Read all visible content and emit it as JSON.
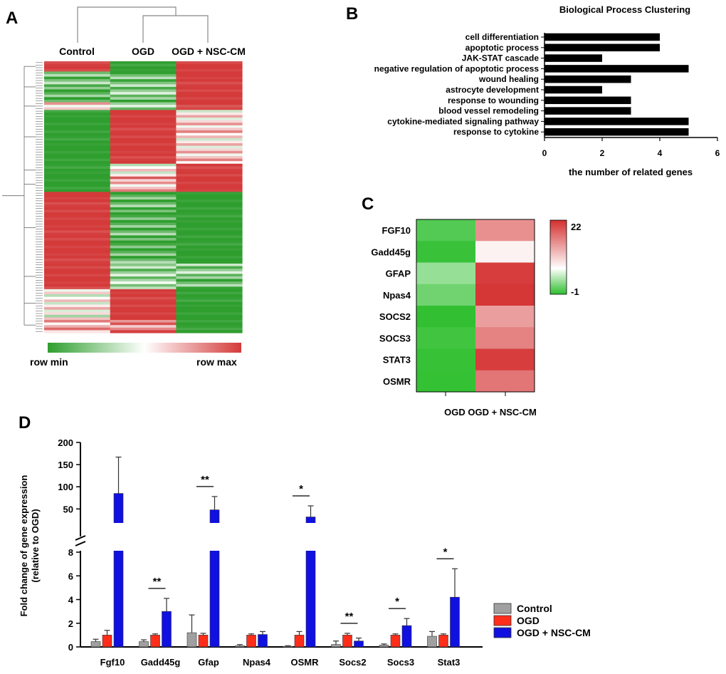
{
  "panel_labels": {
    "a": "A",
    "b": "B",
    "c": "C",
    "d": "D"
  },
  "chart_data": [
    {
      "type": "heatmap",
      "panel": "A",
      "columns": [
        "Control",
        "OGD",
        "OGD + NSC-CM"
      ],
      "scale_min_label": "row min",
      "scale_max_label": "row max",
      "colors": {
        "min": "#2e9e2e",
        "mid": "#ffffff",
        "max": "#d43a3a"
      },
      "clusters": [
        {
          "rows": 4,
          "levels": [
            1.0,
            0.0,
            1.0
          ]
        },
        {
          "rows": 12,
          "levels": [
            0.15,
            0.2,
            1.0
          ]
        },
        {
          "rows": 3,
          "levels": [
            0.6,
            0.3,
            0.95
          ]
        },
        {
          "rows": 21,
          "levels": [
            0.0,
            1.0,
            0.6
          ]
        },
        {
          "rows": 5,
          "levels": [
            0.0,
            0.5,
            1.0
          ]
        },
        {
          "rows": 6,
          "levels": [
            0.0,
            0.7,
            1.0
          ]
        },
        {
          "rows": 28,
          "levels": [
            1.0,
            0.1,
            0.0
          ]
        },
        {
          "rows": 10,
          "levels": [
            1.0,
            0.3,
            0.2
          ]
        },
        {
          "rows": 11,
          "levels": [
            0.5,
            1.0,
            0.0
          ]
        },
        {
          "rows": 6,
          "levels": [
            0.7,
            0.85,
            0.0
          ]
        }
      ]
    },
    {
      "type": "bar",
      "panel": "B",
      "orientation": "horizontal",
      "title": "Biological Process Clustering",
      "xlabel": "the number of related genes",
      "xlim": [
        0,
        6
      ],
      "xticks": [
        "0",
        "2",
        "4",
        "6"
      ],
      "categories": [
        "cell differentiation",
        "apoptotic process",
        "JAK-STAT cascade",
        "negative regulation of apoptotic process",
        "wound healing",
        "astrocyte development",
        "response to wounding",
        "blood vessel remodeling",
        "cytokine-mediated signaling pathway",
        "response to cytokine"
      ],
      "values": [
        4,
        4,
        2,
        5,
        3,
        2,
        3,
        3,
        5,
        5
      ],
      "bar_color": "#000000"
    },
    {
      "type": "heatmap",
      "panel": "C",
      "rows": [
        "FGF10",
        "Gadd45g",
        "GFAP",
        "Npas4",
        "SOCS2",
        "SOCS3",
        "STAT3",
        "OSMR"
      ],
      "columns_label": "OGD OGD + NSC-CM",
      "columns": [
        "OGD",
        "OGD + NSC-CM"
      ],
      "values": [
        [
          0.4,
          15.0
        ],
        [
          -0.6,
          8.0
        ],
        [
          3.0,
          21.0
        ],
        [
          1.5,
          21.5
        ],
        [
          -0.9,
          14.0
        ],
        [
          -0.3,
          16.0
        ],
        [
          -0.7,
          21.0
        ],
        [
          -0.8,
          17.0
        ]
      ],
      "scale": {
        "min": -1,
        "max": 22,
        "min_label": "-1",
        "max_label": "22"
      }
    },
    {
      "type": "bar",
      "panel": "D",
      "ylabel": "Fold change of gene expression",
      "ylabel2": "(relative to OGD)",
      "axis_break": {
        "lower": [
          0,
          8
        ],
        "upper": [
          20,
          200
        ]
      },
      "lower_ticks": [
        "0",
        "2",
        "4",
        "6",
        "8"
      ],
      "upper_ticks": [
        "50",
        "100",
        "150",
        "200"
      ],
      "categories": [
        "Fgf10",
        "Gadd45g",
        "Gfap",
        "Npas4",
        "OSMR",
        "Socs2",
        "Socs3",
        "Stat3"
      ],
      "series": [
        {
          "name": "Control",
          "color": "#a0a0a0",
          "values": [
            0.45,
            0.45,
            1.2,
            0.1,
            0.05,
            0.2,
            0.15,
            0.9
          ],
          "errors": [
            0.2,
            0.15,
            1.5,
            0.1,
            0.05,
            0.3,
            0.1,
            0.4
          ]
        },
        {
          "name": "OGD",
          "color": "#ff2d1a",
          "values": [
            1.0,
            1.0,
            1.0,
            1.0,
            1.0,
            1.0,
            1.0,
            1.0
          ],
          "errors": [
            0.4,
            0.1,
            0.15,
            0.1,
            0.3,
            0.15,
            0.1,
            0.1
          ]
        },
        {
          "name": "OGD + NSC-CM",
          "color": "#1010e0",
          "values": [
            85,
            3.0,
            48,
            1.05,
            32,
            0.5,
            1.8,
            4.2
          ],
          "errors": [
            82,
            1.1,
            30,
            0.25,
            25,
            0.25,
            0.6,
            2.4
          ]
        }
      ],
      "significance": [
        {
          "category": "Gadd45g",
          "label": "**"
        },
        {
          "category": "Gfap",
          "label": "**"
        },
        {
          "category": "OSMR",
          "label": "*"
        },
        {
          "category": "Socs2",
          "label": "**"
        },
        {
          "category": "Socs3",
          "label": "*"
        },
        {
          "category": "Stat3",
          "label": "*"
        }
      ]
    }
  ]
}
